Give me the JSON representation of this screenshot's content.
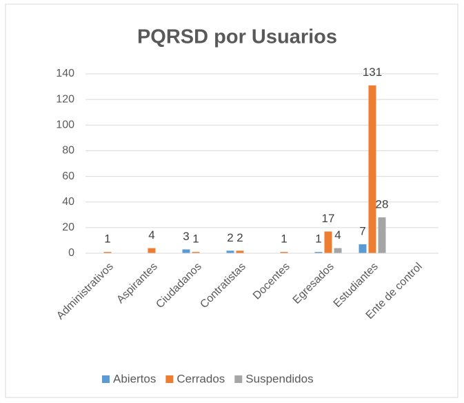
{
  "chart_data": {
    "type": "bar",
    "title": "PQRSD por Usuarios",
    "categories": [
      "Administrativos",
      "Aspirantes",
      "Ciudadanos",
      "Contratistas",
      "Docentes",
      "Egresados",
      "Estudiantes",
      "Ente de control"
    ],
    "series": [
      {
        "name": "Abiertos",
        "color": "#5b9bd5",
        "values": [
          null,
          null,
          3,
          2,
          null,
          1,
          7,
          null
        ]
      },
      {
        "name": "Cerrados",
        "color": "#ed7d31",
        "values": [
          1,
          4,
          1,
          2,
          1,
          17,
          131,
          null
        ]
      },
      {
        "name": "Suspendidos",
        "color": "#a5a5a5",
        "values": [
          null,
          null,
          null,
          null,
          null,
          4,
          28,
          null
        ]
      }
    ],
    "ylim": [
      0,
      140
    ],
    "yticks": [
      0,
      20,
      40,
      60,
      80,
      100,
      120,
      140
    ],
    "grid": true,
    "legend": "bottom"
  }
}
